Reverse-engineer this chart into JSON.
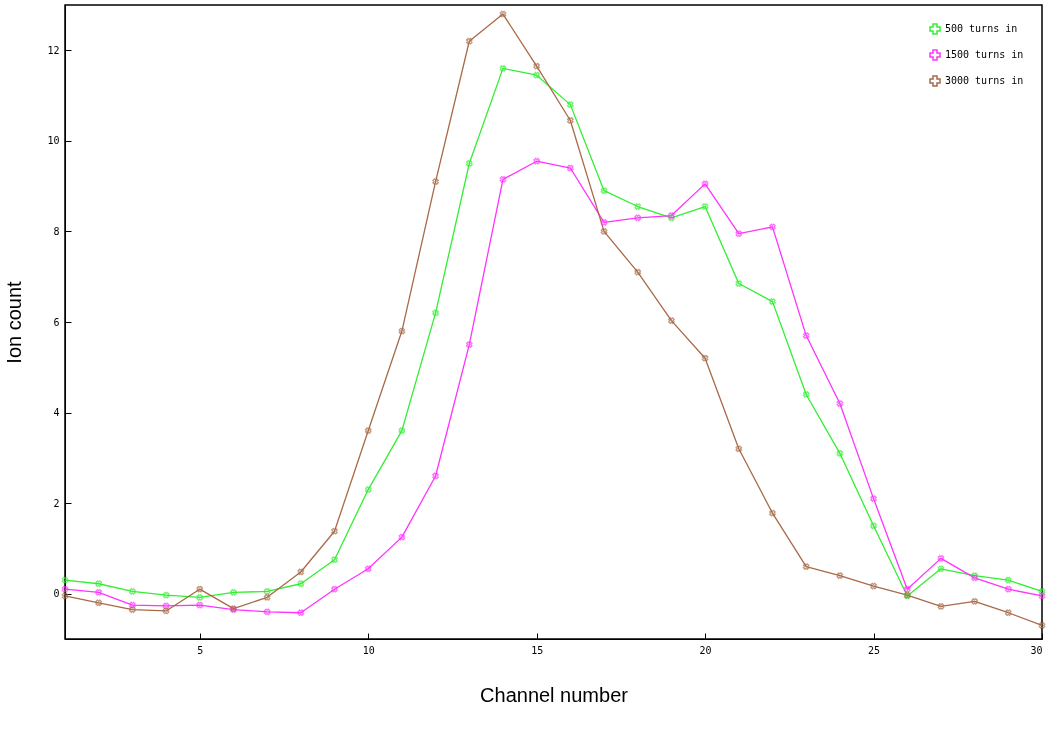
{
  "chart_data": {
    "type": "line",
    "xlabel": "Channel number",
    "ylabel": "Ion count",
    "x": [
      1,
      2,
      3,
      4,
      5,
      6,
      7,
      8,
      9,
      10,
      11,
      12,
      13,
      14,
      15,
      16,
      17,
      18,
      19,
      20,
      21,
      22,
      23,
      24,
      25,
      26,
      27,
      28,
      29,
      30
    ],
    "xlim": [
      1,
      30
    ],
    "xticks": [
      5,
      10,
      15,
      20,
      25,
      30
    ],
    "ylim": [
      -1,
      13
    ],
    "yticks": [
      0,
      2,
      4,
      6,
      8,
      10,
      12
    ],
    "grid": false,
    "legend": "top right",
    "marker": "cross",
    "series": [
      {
        "name": "500 turns in",
        "color": "#33ee33",
        "values": [
          0.3,
          0.22,
          0.05,
          -0.03,
          -0.08,
          0.03,
          0.05,
          0.22,
          0.75,
          2.3,
          3.6,
          6.2,
          9.5,
          11.6,
          11.45,
          10.8,
          8.9,
          8.55,
          8.3,
          8.55,
          6.85,
          6.45,
          4.4,
          3.1,
          1.5,
          -0.05,
          0.55,
          0.4,
          0.3,
          0.05
        ]
      },
      {
        "name": "1500 turns in",
        "color": "#ff33ff",
        "values": [
          0.1,
          0.03,
          -0.25,
          -0.27,
          -0.25,
          -0.35,
          -0.4,
          -0.42,
          0.1,
          0.55,
          1.25,
          2.6,
          5.5,
          9.15,
          9.55,
          9.4,
          8.2,
          8.3,
          8.35,
          9.05,
          7.95,
          8.1,
          5.7,
          4.2,
          2.1,
          0.1,
          0.78,
          0.35,
          0.1,
          -0.05
        ]
      },
      {
        "name": "3000 turns in",
        "color": "#a86a48",
        "values": [
          -0.05,
          -0.2,
          -0.35,
          -0.38,
          0.1,
          -0.33,
          -0.08,
          0.48,
          1.38,
          3.6,
          5.8,
          9.1,
          12.2,
          12.8,
          11.65,
          10.45,
          8.0,
          7.1,
          6.03,
          5.2,
          3.2,
          1.78,
          0.6,
          0.4,
          0.17,
          -0.03,
          -0.28,
          -0.17,
          -0.42,
          -0.7
        ]
      }
    ]
  }
}
